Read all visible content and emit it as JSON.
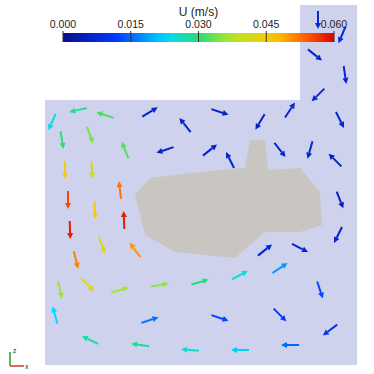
{
  "chart_data": {
    "type": "quiver",
    "xlim": [
      0,
      374
    ],
    "ylim": [
      0,
      374
    ],
    "tick_labels": false,
    "triad_labels": {
      "x": "x",
      "z": "z"
    },
    "colorbar": {
      "title": "U (m/s)",
      "range": [
        0,
        0.06
      ],
      "ticks": [
        {
          "value": 0,
          "label": "0.000"
        },
        {
          "value": 0.015,
          "label": "0.015"
        },
        {
          "value": 0.03,
          "label": "0.030"
        },
        {
          "value": 0.045,
          "label": "0.045"
        },
        {
          "value": 0.06,
          "label": "0.060"
        }
      ]
    },
    "x": [
      62,
      65,
      68,
      70,
      76,
      88,
      90,
      92,
      95,
      102,
      120,
      124,
      135,
      105,
      78,
      52,
      125,
      120,
      160,
      200,
      240,
      280,
      320,
      330,
      290,
      240,
      190,
      140,
      90,
      55,
      60,
      150,
      220,
      280,
      150,
      185,
      220,
      260,
      290,
      165,
      210,
      318,
      342,
      315,
      345,
      318,
      340,
      335,
      340,
      338,
      300,
      265,
      230,
      280,
      310
    ],
    "y": [
      234,
      204,
      174,
      144,
      114,
      89,
      239,
      204,
      164,
      129,
      184,
      154,
      124,
      259,
      264,
      252,
      224,
      84,
      89,
      92,
      99,
      106,
      84,
      44,
      29,
      24,
      24,
      29,
      34,
      59,
      84,
      54,
      56,
      59,
      262,
      249,
      262,
      252,
      264,
      224,
      224,
      354,
      339,
      319,
      299,
      279,
      254,
      214,
      174,
      139,
      126,
      124,
      214,
      224,
      224
    ],
    "u": [
      0.005,
      0,
      0,
      0.002,
      0.012,
      0.03,
      0.012,
      0.003,
      0.002,
      0.015,
      -0.006,
      -0.002,
      -0.03,
      -0.03,
      -0.028,
      -0.01,
      -0.012,
      0.035,
      0.035,
      0.028,
      0.022,
      0.015,
      0.004,
      -0.008,
      -0.015,
      -0.022,
      -0.025,
      -0.028,
      -0.025,
      -0.006,
      0.008,
      0.015,
      0.012,
      0.008,
      0.005,
      -0.004,
      0.006,
      -0.003,
      0.004,
      -0.006,
      0.005,
      0,
      -0.003,
      0.005,
      0.001,
      -0.005,
      0.003,
      -0.004,
      0.002,
      -0.003,
      0.006,
      0.005,
      -0.003,
      0.004,
      -0.002
    ],
    "v": [
      -0.03,
      -0.045,
      -0.055,
      -0.058,
      -0.05,
      -0.03,
      -0.032,
      -0.04,
      -0.046,
      -0.04,
      0.052,
      0.058,
      0.04,
      0.01,
      -0.006,
      -0.022,
      0.03,
      0.01,
      0.006,
      0.008,
      0.012,
      0.01,
      -0.012,
      -0.006,
      0,
      0,
      0.002,
      0.004,
      0.012,
      0.022,
      -0.035,
      0.005,
      -0.004,
      -0.008,
      0.003,
      0.005,
      -0.002,
      -0.005,
      0.006,
      -0.002,
      0.004,
      -0.008,
      -0.007,
      -0.004,
      -0.007,
      -0.005,
      -0.006,
      0.004,
      -0.005,
      -0.006,
      -0.003,
      0.004,
      0.006,
      -0.005,
      -0.007
    ]
  }
}
